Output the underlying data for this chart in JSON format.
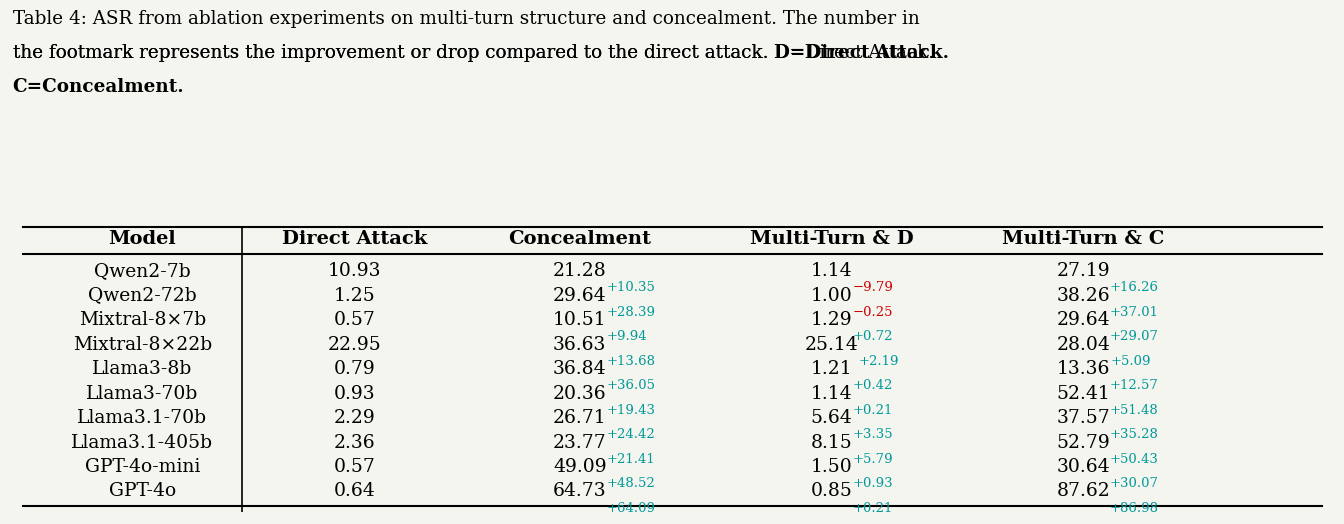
{
  "caption_lines": [
    "Table 4: ASR from ablation experiments on multi-turn structure and concealment. The number in",
    "the footmark represents the improvement or drop compared to the direct attack. D=Direct Attack.",
    "C=Concealment."
  ],
  "caption_bold_parts": [
    {
      "text": "D=Direct Attack.",
      "bold": true
    },
    {
      "text": "C=Concealment.",
      "bold": true
    }
  ],
  "headers": [
    "Model",
    "Direct Attack",
    "Concealment",
    "Multi-Turn & D",
    "Multi-Turn & C"
  ],
  "rows": [
    {
      "model": "Qwen2-7b",
      "direct": "10.93",
      "conceal_main": "21.28",
      "conceal_delta": "+10.35",
      "conceal_delta_color": "cyan",
      "multi_d_main": "1.14",
      "multi_d_delta": "−9.79",
      "multi_d_delta_color": "red",
      "multi_c_main": "27.19",
      "multi_c_delta": "+16.26",
      "multi_c_delta_color": "cyan"
    },
    {
      "model": "Qwen2-72b",
      "direct": "1.25",
      "conceal_main": "29.64",
      "conceal_delta": "+28.39",
      "conceal_delta_color": "cyan",
      "multi_d_main": "1.00",
      "multi_d_delta": "−0.25",
      "multi_d_delta_color": "red",
      "multi_c_main": "38.26",
      "multi_c_delta": "+37.01",
      "multi_c_delta_color": "cyan"
    },
    {
      "model": "Mixtral-8×7b",
      "direct": "0.57",
      "conceal_main": "10.51",
      "conceal_delta": "+9.94",
      "conceal_delta_color": "cyan",
      "multi_d_main": "1.29",
      "multi_d_delta": "+0.72",
      "multi_d_delta_color": "cyan",
      "multi_c_main": "29.64",
      "multi_c_delta": "+29.07",
      "multi_c_delta_color": "cyan"
    },
    {
      "model": "Mixtral-8×22b",
      "direct": "22.95",
      "conceal_main": "36.63",
      "conceal_delta": "+13.68",
      "conceal_delta_color": "cyan",
      "multi_d_main": "25.14",
      "multi_d_delta": "+2.19",
      "multi_d_delta_color": "cyan",
      "multi_c_main": "28.04",
      "multi_c_delta": "+5.09",
      "multi_c_delta_color": "cyan"
    },
    {
      "model": "Llama3-8b",
      "direct": "0.79",
      "conceal_main": "36.84",
      "conceal_delta": "+36.05",
      "conceal_delta_color": "cyan",
      "multi_d_main": "1.21",
      "multi_d_delta": "+0.42",
      "multi_d_delta_color": "cyan",
      "multi_c_main": "13.36",
      "multi_c_delta": "+12.57",
      "multi_c_delta_color": "cyan"
    },
    {
      "model": "Llama3-70b",
      "direct": "0.93",
      "conceal_main": "20.36",
      "conceal_delta": "+19.43",
      "conceal_delta_color": "cyan",
      "multi_d_main": "1.14",
      "multi_d_delta": "+0.21",
      "multi_d_delta_color": "cyan",
      "multi_c_main": "52.41",
      "multi_c_delta": "+51.48",
      "multi_c_delta_color": "cyan"
    },
    {
      "model": "Llama3.1-70b",
      "direct": "2.29",
      "conceal_main": "26.71",
      "conceal_delta": "+24.42",
      "conceal_delta_color": "cyan",
      "multi_d_main": "5.64",
      "multi_d_delta": "+3.35",
      "multi_d_delta_color": "cyan",
      "multi_c_main": "37.57",
      "multi_c_delta": "+35.28",
      "multi_c_delta_color": "cyan"
    },
    {
      "model": "Llama3.1-405b",
      "direct": "2.36",
      "conceal_main": "23.77",
      "conceal_delta": "+21.41",
      "conceal_delta_color": "cyan",
      "multi_d_main": "8.15",
      "multi_d_delta": "+5.79",
      "multi_d_delta_color": "cyan",
      "multi_c_main": "52.79",
      "multi_c_delta": "+50.43",
      "multi_c_delta_color": "cyan"
    },
    {
      "model": "GPT-4o-mini",
      "direct": "0.57",
      "conceal_main": "49.09",
      "conceal_delta": "+48.52",
      "conceal_delta_color": "cyan",
      "multi_d_main": "1.50",
      "multi_d_delta": "+0.93",
      "multi_d_delta_color": "cyan",
      "multi_c_main": "30.64",
      "multi_c_delta": "+30.07",
      "multi_c_delta_color": "cyan"
    },
    {
      "model": "GPT-4o",
      "direct": "0.64",
      "conceal_main": "64.73",
      "conceal_delta": "+64.09",
      "conceal_delta_color": "cyan",
      "multi_d_main": "0.85",
      "multi_d_delta": "+0.21",
      "multi_d_delta_color": "cyan",
      "multi_c_main": "87.62",
      "multi_c_delta": "+86.98",
      "multi_c_delta_color": "cyan"
    }
  ],
  "bg_color": "#f5f5f0",
  "main_font_size": 13.5,
  "sub_font_size": 9.5,
  "header_font_size": 14,
  "caption_font_size": 13.2
}
